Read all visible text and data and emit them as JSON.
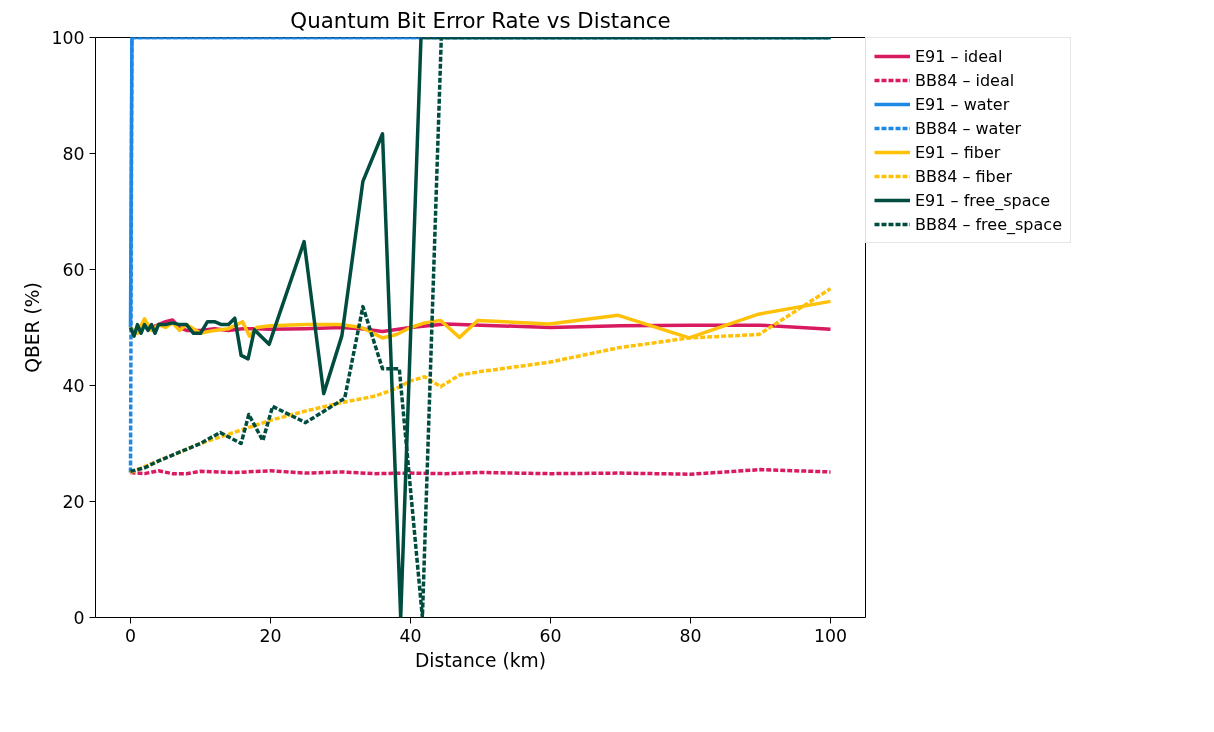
{
  "chart_data": {
    "type": "line",
    "title": "Quantum Bit Error Rate vs Distance",
    "xlabel": "Distance (km)",
    "ylabel": "QBER (%)",
    "xlim": [
      -5,
      105
    ],
    "ylim": [
      0,
      100
    ],
    "xticks": [
      0,
      20,
      40,
      60,
      80,
      100
    ],
    "yticks": [
      0,
      20,
      40,
      60,
      80,
      100
    ],
    "grid": false,
    "legend": "right",
    "series": [
      {
        "name": "E91 – ideal",
        "color": "#d81b60",
        "line_style": "solid",
        "x": [
          3,
          4,
          5,
          6,
          7,
          8,
          10,
          12,
          14,
          16,
          18,
          20,
          25,
          30,
          33,
          36,
          40,
          45,
          50,
          60,
          70,
          80,
          90,
          100
        ],
        "values": [
          50,
          50.5,
          51,
          51.3,
          50,
          49.5,
          49.5,
          49.8,
          49.5,
          49.8,
          49.8,
          49.7,
          49.8,
          50,
          49.8,
          49.3,
          50,
          50.6,
          50.4,
          50,
          50.3,
          50.4,
          50.4,
          49.7
        ]
      },
      {
        "name": "BB84 – ideal",
        "color": "#d81b60",
        "line_style": "dashed",
        "x": [
          0,
          2,
          4,
          6,
          8,
          10,
          15,
          20,
          25,
          30,
          35,
          40,
          45,
          50,
          60,
          70,
          80,
          90,
          100
        ],
        "values": [
          25,
          24.8,
          25.3,
          24.8,
          24.8,
          25.2,
          25,
          25.3,
          24.9,
          25.1,
          24.8,
          24.9,
          24.8,
          25,
          24.8,
          24.9,
          24.7,
          25.5,
          25.1
        ]
      },
      {
        "name": "E91 – water",
        "color": "#1e88e5",
        "line_style": "solid",
        "x": [
          0,
          0.2,
          100
        ],
        "values": [
          50,
          100,
          100
        ]
      },
      {
        "name": "BB84 – water",
        "color": "#1e88e5",
        "line_style": "dashed",
        "x": [
          0,
          0.2,
          100
        ],
        "values": [
          25,
          100,
          100
        ]
      },
      {
        "name": "E91 – fiber",
        "color": "#ffc107",
        "line_style": "solid",
        "x": [
          0,
          1,
          2,
          3,
          4,
          5,
          6,
          7,
          8,
          10,
          12,
          14,
          16,
          17,
          18,
          20,
          25,
          30,
          33,
          36,
          38,
          40,
          42,
          44.3,
          47,
          49.6,
          59.8,
          69.7,
          79.8,
          89.7,
          100
        ],
        "values": [
          50,
          49,
          51.5,
          49.5,
          50.5,
          50,
          50.8,
          49.5,
          50.5,
          49,
          49.5,
          49.8,
          51,
          48.5,
          50,
          50.3,
          50.5,
          50.5,
          50,
          48.2,
          48.8,
          50,
          50.8,
          51.2,
          48.3,
          51.2,
          50.6,
          52.1,
          48.2,
          52.3,
          54.5
        ]
      },
      {
        "name": "BB84 – fiber",
        "color": "#ffc107",
        "line_style": "dashed",
        "x": [
          0,
          5,
          10,
          15,
          20,
          25,
          30,
          35,
          38,
          40,
          42,
          44.3,
          47,
          50,
          59.8,
          69.7,
          79.8,
          89.8,
          100
        ],
        "values": [
          25,
          27.5,
          30,
          32,
          34,
          35.6,
          37,
          38.2,
          39.5,
          40.8,
          41.5,
          39.8,
          41.8,
          42.4,
          44,
          46.5,
          48.2,
          48.8,
          56.7
        ]
      },
      {
        "name": "E91 – free_space",
        "color": "#004d40",
        "line_style": "solid",
        "x": [
          0,
          0.5,
          1,
          1.5,
          2,
          2.5,
          3,
          3.5,
          4,
          5,
          6,
          7,
          8,
          9,
          10,
          11,
          12,
          13,
          14,
          14.9,
          15.8,
          16.8,
          17.7,
          19.8,
          24.8,
          27.6,
          30.2,
          33.2,
          36,
          38.6,
          41.5,
          44,
          100
        ],
        "values": [
          50,
          48.5,
          50.5,
          49,
          50.5,
          49.5,
          50.5,
          49,
          50.5,
          50.5,
          50.8,
          50.5,
          50.5,
          49,
          49,
          51,
          51,
          50.5,
          50.5,
          51.6,
          45.2,
          44.6,
          49.6,
          47.1,
          64.8,
          38.6,
          48.6,
          75.2,
          83.4,
          0,
          100,
          100,
          100
        ]
      },
      {
        "name": "BB84 – free_space",
        "color": "#004d40",
        "line_style": "dashed",
        "x": [
          0,
          2,
          4,
          6,
          8,
          10,
          12.8,
          15.8,
          16.9,
          18.9,
          20.3,
          25,
          30.6,
          33.2,
          36,
          38.4,
          41.7,
          44.4,
          100
        ],
        "values": [
          25.2,
          25.8,
          27,
          28,
          29,
          30,
          31.9,
          30,
          35,
          30.5,
          36.4,
          33.6,
          37.8,
          53.6,
          42.9,
          42.9,
          0,
          100,
          100
        ]
      }
    ]
  }
}
